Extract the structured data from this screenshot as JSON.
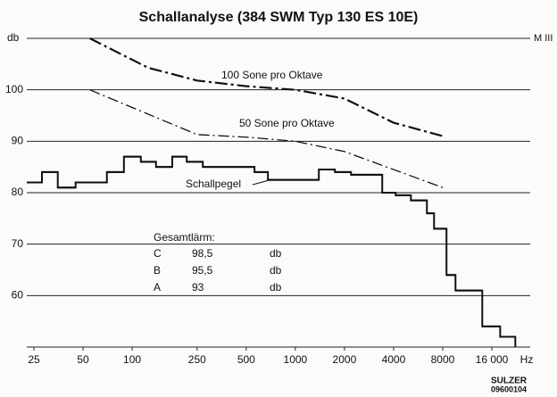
{
  "chart_data": {
    "type": "line",
    "title": "Schallanalyse (384 SWM Typ 130 ES 10E)",
    "y_label": "db",
    "x_label": "Hz",
    "corner_label": "M III",
    "xscale": "log",
    "xlim": [
      22.6,
      27500
    ],
    "xticks": [
      25,
      50,
      100,
      250,
      500,
      1000,
      2000,
      4000,
      8000,
      {
        "value": 16000,
        "label": "16 000"
      }
    ],
    "ylim": [
      50,
      110
    ],
    "yticks": [
      60,
      70,
      80,
      90,
      100
    ],
    "grid": true,
    "series": [
      {
        "name": "100 Sone pro Oktave",
        "color": "#111111",
        "linestyle": "dashdot",
        "x": [
          55,
          125,
          250,
          500,
          1000,
          2000,
          4000,
          8000
        ],
        "values": [
          110,
          104.3,
          101.8,
          100.7,
          100,
          98.3,
          93.6,
          91
        ]
      },
      {
        "name": "50 Sone pro Oktave",
        "color": "#111111",
        "linestyle": "dashdot",
        "x": [
          55,
          250,
          500,
          1000,
          2000,
          4000,
          8000
        ],
        "values": [
          100,
          91.3,
          90.8,
          90,
          88,
          84.5,
          81
        ]
      },
      {
        "name": "Schallpegel",
        "color": "#111111",
        "type": "step",
        "bins": [
          22.6,
          28,
          35,
          45,
          70,
          89,
          113,
          140,
          176,
          216,
          271,
          562,
          679,
          1393,
          1748,
          2193,
          3408,
          4118,
          5106,
          6400,
          7080,
          8440,
          9580,
          13980,
          18000,
          22280
        ],
        "values": [
          82,
          84,
          81,
          82,
          84,
          87,
          86,
          85,
          87,
          86,
          85,
          84,
          82.5,
          84.5,
          84,
          83.5,
          80,
          79.5,
          78.5,
          76,
          73,
          64,
          61,
          54,
          52
        ]
      }
    ],
    "summary": {
      "title": "Gesamtlärm:",
      "rows": [
        [
          "C",
          "98,5",
          "db"
        ],
        [
          "B",
          "95,5",
          "db"
        ],
        [
          "A",
          "93",
          "db"
        ]
      ]
    },
    "footer": [
      "SULZER",
      "09600104"
    ]
  }
}
